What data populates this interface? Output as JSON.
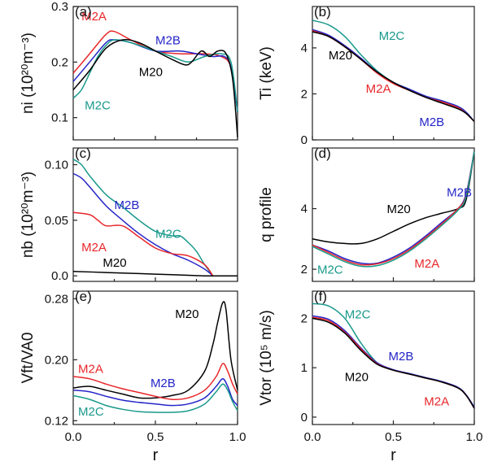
{
  "colors": {
    "M20": "#000000",
    "M2A": "#e8262a",
    "M2B": "#2525c8",
    "M2C": "#1a9a8c"
  },
  "chart_data": [
    {
      "type": "line",
      "panel": "(a)",
      "ylabel": "ni (10²⁰m⁻³)",
      "xlim": [
        0,
        1
      ],
      "ylim": [
        0.06,
        0.3
      ],
      "yticks": [
        0.1,
        0.2,
        0.3
      ],
      "yticklabels": [
        "0.1",
        "0.2",
        "0.3"
      ],
      "series": [
        {
          "name": "M2A",
          "x": [
            0,
            0.1,
            0.2,
            0.25,
            0.35,
            0.5,
            0.65,
            0.8,
            0.9,
            0.96,
            1.0
          ],
          "y": [
            0.18,
            0.215,
            0.25,
            0.255,
            0.24,
            0.22,
            0.215,
            0.215,
            0.21,
            0.19,
            0.11
          ]
        },
        {
          "name": "M2B",
          "x": [
            0,
            0.1,
            0.2,
            0.25,
            0.35,
            0.5,
            0.65,
            0.75,
            0.85,
            0.92,
            0.96,
            1.0
          ],
          "y": [
            0.165,
            0.2,
            0.235,
            0.24,
            0.235,
            0.22,
            0.22,
            0.215,
            0.21,
            0.21,
            0.19,
            0.11
          ]
        },
        {
          "name": "M2C",
          "x": [
            0,
            0.05,
            0.1,
            0.15,
            0.2,
            0.25,
            0.35,
            0.5,
            0.6,
            0.7,
            0.8,
            0.9,
            0.96,
            1.0
          ],
          "y": [
            0.135,
            0.15,
            0.18,
            0.21,
            0.23,
            0.24,
            0.235,
            0.22,
            0.21,
            0.2,
            0.21,
            0.215,
            0.2,
            0.11
          ]
        },
        {
          "name": "M20",
          "x": [
            0,
            0.1,
            0.2,
            0.3,
            0.4,
            0.5,
            0.6,
            0.68,
            0.72,
            0.78,
            0.83,
            0.88,
            0.93,
            0.97,
            1.0
          ],
          "y": [
            0.15,
            0.185,
            0.225,
            0.24,
            0.235,
            0.22,
            0.205,
            0.195,
            0.2,
            0.22,
            0.21,
            0.22,
            0.215,
            0.17,
            0.065
          ]
        }
      ],
      "annotations": [
        {
          "text": "M2A",
          "series": "M2A",
          "x": 0.05,
          "y": 0.275
        },
        {
          "text": "M2B",
          "series": "M2B",
          "x": 0.5,
          "y": 0.232
        },
        {
          "text": "M20",
          "series": "M20",
          "x": 0.4,
          "y": 0.175
        },
        {
          "text": "M2C",
          "series": "M2C",
          "x": 0.07,
          "y": 0.115
        }
      ]
    },
    {
      "type": "line",
      "panel": "(b)",
      "ylabel": "Ti (keV)",
      "xlim": [
        0,
        1
      ],
      "ylim": [
        0,
        5.8
      ],
      "yticks": [
        0,
        2,
        4
      ],
      "yticklabels": [
        "0",
        "2",
        "4"
      ],
      "series": [
        {
          "name": "M2C",
          "x": [
            0,
            0.1,
            0.2,
            0.3,
            0.4,
            0.5,
            0.6,
            0.7,
            0.8,
            0.9,
            0.95,
            1.0
          ],
          "y": [
            5.2,
            5.0,
            4.5,
            3.7,
            3.0,
            2.5,
            2.2,
            1.9,
            1.7,
            1.45,
            1.2,
            0.8
          ]
        },
        {
          "name": "M2B",
          "x": [
            0,
            0.1,
            0.2,
            0.3,
            0.4,
            0.5,
            0.6,
            0.7,
            0.8,
            0.9,
            0.95,
            1.0
          ],
          "y": [
            4.8,
            4.55,
            4.1,
            3.55,
            2.95,
            2.5,
            2.2,
            1.9,
            1.7,
            1.45,
            1.2,
            0.8
          ]
        },
        {
          "name": "M2A",
          "x": [
            0,
            0.1,
            0.2,
            0.3,
            0.4,
            0.5,
            0.6,
            0.7,
            0.8,
            0.9,
            0.95,
            1.0
          ],
          "y": [
            4.75,
            4.5,
            4.05,
            3.5,
            2.9,
            2.45,
            2.15,
            1.85,
            1.65,
            1.4,
            1.15,
            0.8
          ]
        },
        {
          "name": "M20",
          "x": [
            0,
            0.1,
            0.2,
            0.3,
            0.4,
            0.5,
            0.6,
            0.7,
            0.8,
            0.9,
            0.95,
            1.0
          ],
          "y": [
            4.7,
            4.5,
            4.05,
            3.5,
            2.95,
            2.5,
            2.15,
            1.85,
            1.6,
            1.35,
            1.15,
            0.8
          ]
        }
      ],
      "annotations": [
        {
          "text": "M2C",
          "series": "M2C",
          "x": 0.41,
          "y": 4.35
        },
        {
          "text": "M20",
          "series": "M20",
          "x": 0.1,
          "y": 3.5
        },
        {
          "text": "M2A",
          "series": "M2A",
          "x": 0.33,
          "y": 2.05
        },
        {
          "text": "M2B",
          "series": "M2B",
          "x": 0.66,
          "y": 0.6
        }
      ]
    },
    {
      "type": "line",
      "panel": "(c)",
      "ylabel": "nb (10²⁰m⁻³)",
      "xlim": [
        0,
        1
      ],
      "ylim": [
        -0.005,
        0.115
      ],
      "yticks": [
        0,
        0.05,
        0.1
      ],
      "yticklabels": [
        "0.0",
        "0.05",
        "0.10"
      ],
      "series": [
        {
          "name": "M2C",
          "x": [
            0,
            0.05,
            0.1,
            0.2,
            0.3,
            0.4,
            0.5,
            0.6,
            0.65,
            0.7,
            0.75,
            0.8,
            0.85
          ],
          "y": [
            0.105,
            0.1,
            0.09,
            0.073,
            0.062,
            0.05,
            0.04,
            0.036,
            0.036,
            0.03,
            0.022,
            0.01,
            0.0
          ]
        },
        {
          "name": "M2B",
          "x": [
            0,
            0.05,
            0.1,
            0.2,
            0.3,
            0.4,
            0.5,
            0.6,
            0.7,
            0.8,
            0.85
          ],
          "y": [
            0.092,
            0.088,
            0.08,
            0.063,
            0.05,
            0.038,
            0.028,
            0.02,
            0.014,
            0.006,
            0.0
          ]
        },
        {
          "name": "M2A",
          "x": [
            0,
            0.1,
            0.15,
            0.2,
            0.3,
            0.4,
            0.5,
            0.6,
            0.7,
            0.8,
            0.85
          ],
          "y": [
            0.057,
            0.055,
            0.05,
            0.045,
            0.045,
            0.035,
            0.025,
            0.02,
            0.018,
            0.01,
            0.0
          ]
        },
        {
          "name": "M20",
          "x": [
            0,
            0.2,
            0.4,
            0.6,
            0.8,
            0.95,
            1.0
          ],
          "y": [
            0.004,
            0.003,
            0.002,
            0.001,
            0.0,
            0.0,
            0.0
          ]
        }
      ],
      "annotations": [
        {
          "text": "M2B",
          "series": "M2B",
          "x": 0.25,
          "y": 0.06
        },
        {
          "text": "M2C",
          "series": "M2C",
          "x": 0.5,
          "y": 0.034
        },
        {
          "text": "M2A",
          "series": "M2A",
          "x": 0.05,
          "y": 0.022
        },
        {
          "text": "M20",
          "series": "M20",
          "x": 0.18,
          "y": 0.008
        }
      ]
    },
    {
      "type": "line",
      "panel": "(d)",
      "ylabel": "q profile",
      "xlim": [
        0,
        1
      ],
      "ylim": [
        1.6,
        6.0
      ],
      "yticks": [
        2,
        4
      ],
      "yticklabels": [
        "2",
        "4"
      ],
      "series": [
        {
          "name": "M20",
          "x": [
            0,
            0.1,
            0.2,
            0.3,
            0.4,
            0.5,
            0.6,
            0.7,
            0.8,
            0.9,
            0.95,
            1.0
          ],
          "y": [
            3.0,
            2.9,
            2.85,
            2.85,
            3.0,
            3.25,
            3.5,
            3.7,
            3.85,
            4.0,
            4.3,
            5.9
          ]
        },
        {
          "name": "M2B",
          "x": [
            0,
            0.1,
            0.2,
            0.3,
            0.4,
            0.5,
            0.6,
            0.7,
            0.8,
            0.9,
            0.95,
            1.0
          ],
          "y": [
            2.8,
            2.6,
            2.35,
            2.2,
            2.2,
            2.4,
            2.7,
            3.1,
            3.55,
            4.0,
            4.5,
            5.9
          ]
        },
        {
          "name": "M2A",
          "x": [
            0,
            0.1,
            0.2,
            0.3,
            0.4,
            0.5,
            0.6,
            0.7,
            0.8,
            0.9,
            0.95,
            1.0
          ],
          "y": [
            2.8,
            2.55,
            2.3,
            2.15,
            2.18,
            2.35,
            2.65,
            3.05,
            3.5,
            4.0,
            4.45,
            5.9
          ]
        },
        {
          "name": "M2C",
          "x": [
            0,
            0.1,
            0.2,
            0.3,
            0.4,
            0.5,
            0.6,
            0.7,
            0.8,
            0.9,
            0.95,
            1.0
          ],
          "y": [
            2.75,
            2.5,
            2.25,
            2.1,
            2.12,
            2.3,
            2.6,
            3.0,
            3.45,
            3.95,
            4.4,
            5.9
          ]
        }
      ],
      "annotations": [
        {
          "text": "M2B",
          "series": "M2B",
          "x": 0.83,
          "y": 4.4
        },
        {
          "text": "M20",
          "series": "M20",
          "x": 0.46,
          "y": 3.85
        },
        {
          "text": "M2C",
          "series": "M2C",
          "x": 0.03,
          "y": 1.85
        },
        {
          "text": "M2A",
          "series": "M2A",
          "x": 0.63,
          "y": 2.05
        }
      ]
    },
    {
      "type": "line",
      "panel": "(e)",
      "ylabel": "Vft/VA0",
      "xlim": [
        0,
        1
      ],
      "ylim": [
        0.115,
        0.29
      ],
      "yticks": [
        0.12,
        0.2,
        0.28
      ],
      "yticklabels": [
        "0.12",
        "0.20",
        "0.28"
      ],
      "series": [
        {
          "name": "M20",
          "x": [
            0,
            0.1,
            0.2,
            0.3,
            0.4,
            0.5,
            0.6,
            0.7,
            0.8,
            0.85,
            0.88,
            0.91,
            0.93,
            0.96,
            1.0
          ],
          "y": [
            0.163,
            0.165,
            0.16,
            0.155,
            0.15,
            0.15,
            0.153,
            0.16,
            0.185,
            0.22,
            0.25,
            0.275,
            0.265,
            0.2,
            0.16
          ]
        },
        {
          "name": "M2A",
          "x": [
            0,
            0.1,
            0.2,
            0.3,
            0.4,
            0.5,
            0.6,
            0.7,
            0.8,
            0.87,
            0.91,
            0.94,
            0.97,
            1.0
          ],
          "y": [
            0.178,
            0.175,
            0.168,
            0.162,
            0.157,
            0.152,
            0.148,
            0.15,
            0.16,
            0.178,
            0.195,
            0.185,
            0.168,
            0.155
          ]
        },
        {
          "name": "M2B",
          "x": [
            0,
            0.1,
            0.2,
            0.3,
            0.4,
            0.5,
            0.6,
            0.7,
            0.8,
            0.87,
            0.91,
            0.94,
            0.97,
            1.0
          ],
          "y": [
            0.16,
            0.158,
            0.152,
            0.147,
            0.144,
            0.142,
            0.14,
            0.142,
            0.15,
            0.165,
            0.175,
            0.165,
            0.148,
            0.14
          ]
        },
        {
          "name": "M2C",
          "x": [
            0,
            0.1,
            0.2,
            0.3,
            0.4,
            0.5,
            0.6,
            0.7,
            0.8,
            0.87,
            0.91,
            0.94,
            0.97,
            1.0
          ],
          "y": [
            0.153,
            0.148,
            0.14,
            0.135,
            0.132,
            0.131,
            0.131,
            0.133,
            0.142,
            0.158,
            0.168,
            0.16,
            0.145,
            0.133
          ]
        }
      ],
      "annotations": [
        {
          "text": "M20",
          "series": "M20",
          "x": 0.62,
          "y": 0.255
        },
        {
          "text": "M2A",
          "series": "M2A",
          "x": 0.03,
          "y": 0.183
        },
        {
          "text": "M2B",
          "series": "M2B",
          "x": 0.47,
          "y": 0.164
        },
        {
          "text": "M2C",
          "series": "M2C",
          "x": 0.03,
          "y": 0.127
        }
      ]
    },
    {
      "type": "line",
      "panel": "(f)",
      "ylabel": "Vtor (10⁵ m/s)",
      "xlabel": "r",
      "xlim": [
        0,
        1
      ],
      "ylim": [
        -0.15,
        2.55
      ],
      "yticks": [
        0,
        1,
        2
      ],
      "yticklabels": [
        "0",
        "1",
        "2"
      ],
      "series": [
        {
          "name": "M2C",
          "x": [
            0,
            0.1,
            0.2,
            0.3,
            0.4,
            0.5,
            0.6,
            0.7,
            0.8,
            0.9,
            0.95,
            1.0
          ],
          "y": [
            2.3,
            2.25,
            2.0,
            1.5,
            1.1,
            0.95,
            0.88,
            0.8,
            0.72,
            0.6,
            0.45,
            0.2
          ]
        },
        {
          "name": "M2B",
          "x": [
            0,
            0.1,
            0.2,
            0.3,
            0.4,
            0.5,
            0.6,
            0.7,
            0.8,
            0.9,
            0.95,
            1.0
          ],
          "y": [
            2.05,
            1.98,
            1.75,
            1.4,
            1.1,
            0.96,
            0.88,
            0.8,
            0.72,
            0.6,
            0.45,
            0.2
          ]
        },
        {
          "name": "M2A",
          "x": [
            0,
            0.1,
            0.2,
            0.3,
            0.4,
            0.5,
            0.6,
            0.7,
            0.8,
            0.9,
            0.95,
            1.0
          ],
          "y": [
            2.02,
            1.95,
            1.72,
            1.38,
            1.08,
            0.95,
            0.87,
            0.79,
            0.71,
            0.59,
            0.44,
            0.18
          ]
        },
        {
          "name": "M20",
          "x": [
            0,
            0.1,
            0.2,
            0.3,
            0.4,
            0.5,
            0.6,
            0.7,
            0.8,
            0.9,
            0.95,
            1.0
          ],
          "y": [
            2.0,
            1.92,
            1.7,
            1.35,
            1.07,
            0.95,
            0.87,
            0.79,
            0.71,
            0.59,
            0.44,
            0.18
          ]
        }
      ],
      "annotations": [
        {
          "text": "M2C",
          "series": "M2C",
          "x": 0.2,
          "y": 2.0
        },
        {
          "text": "M2B",
          "series": "M2B",
          "x": 0.47,
          "y": 1.15
        },
        {
          "text": "M20",
          "series": "M20",
          "x": 0.2,
          "y": 0.73
        },
        {
          "text": "M2A",
          "series": "M2A",
          "x": 0.69,
          "y": 0.24
        }
      ]
    }
  ],
  "x_axis": {
    "xlabel": "r",
    "xticklabels": [
      "0.0",
      "0.5",
      "1.0"
    ]
  }
}
